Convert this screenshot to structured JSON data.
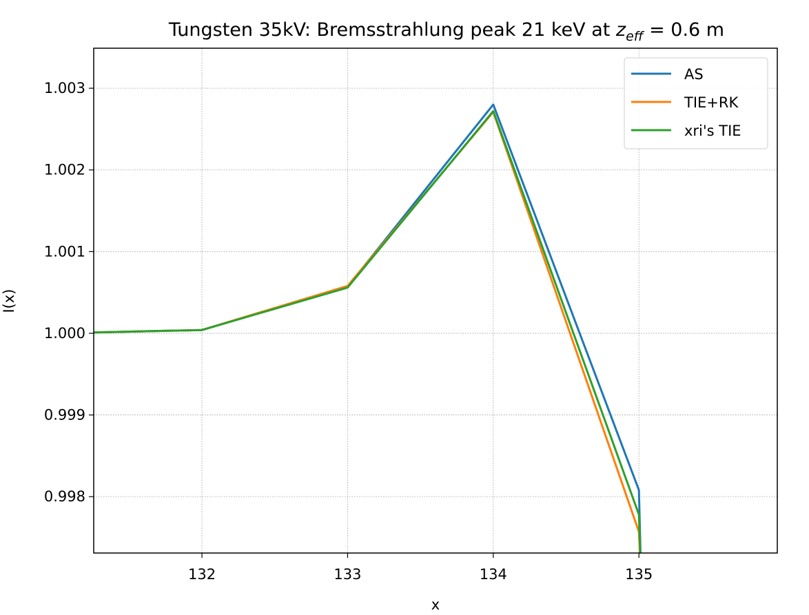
{
  "chart_data": {
    "type": "line",
    "title": [
      "Tungsten 35kV: Bremsstrahlung peak 21 keV at ",
      "z",
      "eff",
      " = 0.6 m"
    ],
    "xlabel": "x",
    "ylabel": "I(x)",
    "x": [
      131,
      132,
      133,
      134,
      135,
      135.015
    ],
    "series": [
      {
        "name": "AS",
        "color": "#1f77b4",
        "values": [
          1.0,
          1.00004,
          1.00057,
          1.0028,
          0.99808,
          0.997
        ]
      },
      {
        "name": "TIE+RK",
        "color": "#ff7f0e",
        "values": [
          1.0,
          1.00004,
          1.00058,
          1.00271,
          0.99757,
          0.997
        ]
      },
      {
        "name": "xri's TIE",
        "color": "#2ca02c",
        "values": [
          1.0,
          1.00004,
          1.00056,
          1.00272,
          0.99778,
          0.997
        ]
      }
    ],
    "xlim": [
      131.257,
      135.95
    ],
    "ylim": [
      0.99731,
      1.00349
    ],
    "xticks": [
      132,
      133,
      134,
      135
    ],
    "yticks": [
      {
        "value": 0.998,
        "label": "0.998"
      },
      {
        "value": 0.999,
        "label": "0.999"
      },
      {
        "value": 1.0,
        "label": "1.000"
      },
      {
        "value": 1.001,
        "label": "1.001"
      },
      {
        "value": 1.002,
        "label": "1.002"
      },
      {
        "value": 1.003,
        "label": "1.003"
      }
    ],
    "grid": true,
    "legend": "upper right"
  }
}
